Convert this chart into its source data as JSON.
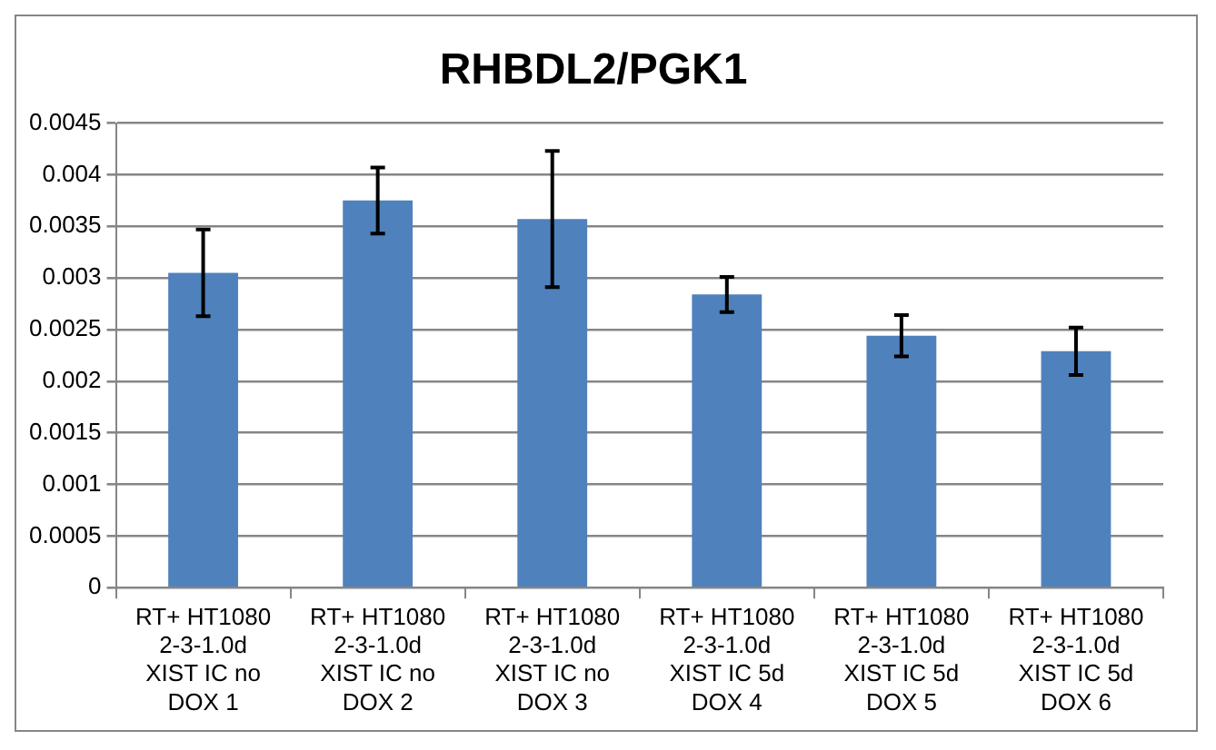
{
  "chart_data": {
    "type": "bar",
    "title": "RHBDL2/PGK1",
    "categories": [
      "RT+ HT1080 2-3-1.0d XIST IC no DOX 1",
      "RT+ HT1080 2-3-1.0d XIST IC no DOX 2",
      "RT+ HT1080 2-3-1.0d XIST IC no DOX 3",
      "RT+ HT1080 2-3-1.0d XIST IC 5d DOX 4",
      "RT+ HT1080 2-3-1.0d XIST IC 5d DOX 5",
      "RT+ HT1080 2-3-1.0d XIST IC 5d DOX 6"
    ],
    "values": [
      0.00305,
      0.00375,
      0.00357,
      0.00284,
      0.00244,
      0.00229
    ],
    "errors": [
      0.00042,
      0.00032,
      0.00066,
      0.00017,
      0.0002,
      0.00023
    ],
    "color": "#4f81bd",
    "ylim": [
      0,
      0.0045
    ],
    "yticks": [
      0,
      0.0005,
      0.001,
      0.0015,
      0.002,
      0.0025,
      0.003,
      0.0035,
      0.004,
      0.0045
    ],
    "grid": "y",
    "legend": false
  }
}
